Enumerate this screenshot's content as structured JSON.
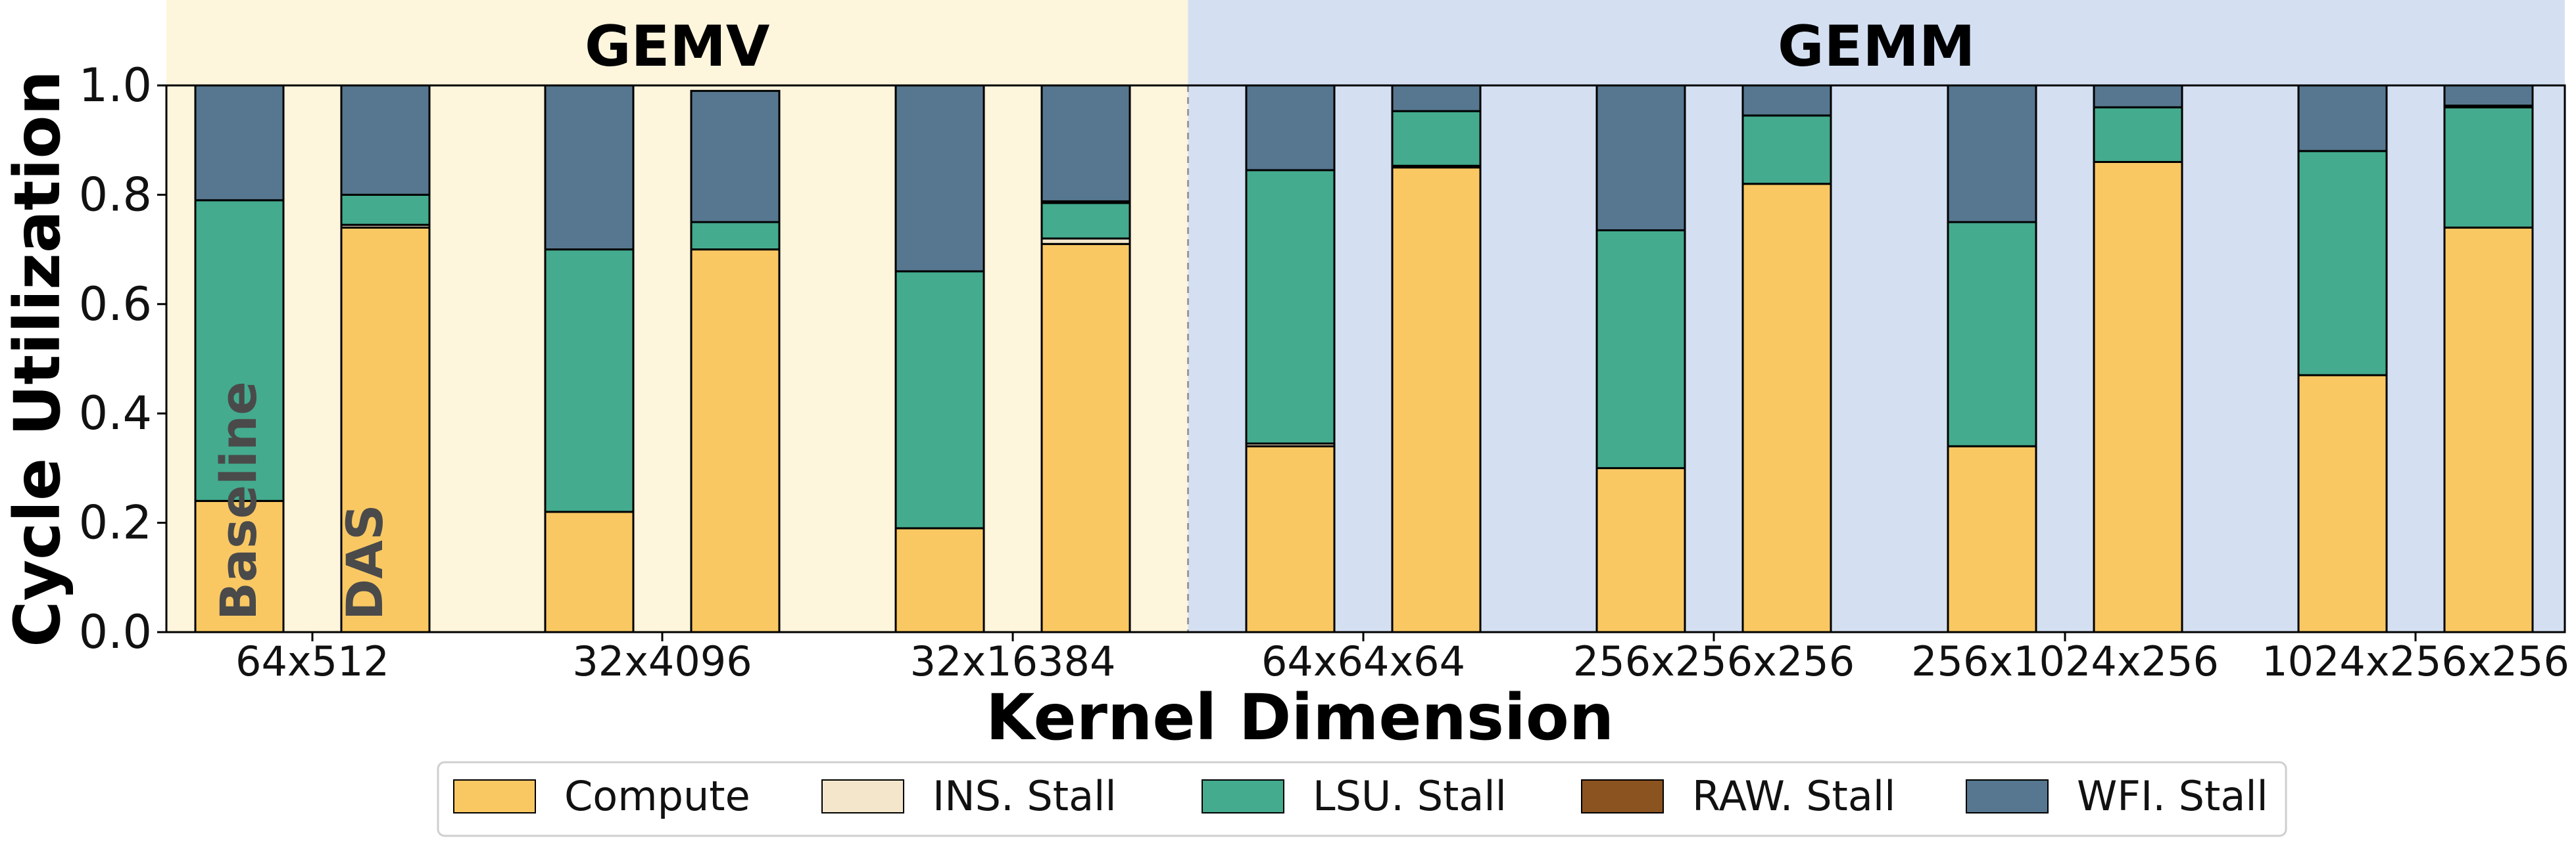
{
  "chart_data": {
    "type": "bar",
    "stacked": true,
    "ylabel": "Cycle Utilization",
    "xlabel": "Kernel Dimension",
    "ylim": [
      0,
      1.0
    ],
    "yticks": [
      "0.0",
      "0.2",
      "0.4",
      "0.6",
      "0.8",
      "1.0"
    ],
    "grid": false,
    "legend_position": "bottom-center",
    "groups": [
      {
        "name": "GEMV",
        "color": "#fdf5dc"
      },
      {
        "name": "GEMM",
        "color": "#d4e0f2"
      }
    ],
    "categories": [
      "64x512",
      "32x4096",
      "32x16384",
      "64x64x64",
      "256x256x256",
      "256x1024x256",
      "1024x256x256"
    ],
    "category_group": [
      "GEMV",
      "GEMV",
      "GEMV",
      "GEMM",
      "GEMM",
      "GEMM",
      "GEMM"
    ],
    "bar_labels": [
      "Baseline",
      "DAS"
    ],
    "series": [
      {
        "name": "Compute",
        "color": "#f9c863",
        "baseline": [
          0.24,
          0.22,
          0.19,
          0.34,
          0.3,
          0.34,
          0.47
        ],
        "das": [
          0.74,
          0.7,
          0.71,
          0.85,
          0.82,
          0.86,
          0.74
        ]
      },
      {
        "name": "INS. Stall",
        "color": "#f3e6cb",
        "baseline": [
          0.0,
          0.0,
          0.0,
          0.005,
          0.0,
          0.0,
          0.0
        ],
        "das": [
          0.005,
          0.0,
          0.01,
          0.003,
          0.0,
          0.0,
          0.0
        ]
      },
      {
        "name": "LSU. Stall",
        "color": "#44ab8e",
        "baseline": [
          0.55,
          0.48,
          0.47,
          0.5,
          0.435,
          0.41,
          0.41
        ],
        "das": [
          0.055,
          0.05,
          0.065,
          0.1,
          0.125,
          0.1,
          0.22
        ]
      },
      {
        "name": "RAW. Stall",
        "color": "#8b5320",
        "baseline": [
          0.0,
          0.0,
          0.0,
          0.0,
          0.0,
          0.0,
          0.0
        ],
        "das": [
          0.0,
          0.0,
          0.003,
          0.0,
          0.0,
          0.0,
          0.003
        ]
      },
      {
        "name": "WFI. Stall",
        "color": "#56778f",
        "baseline": [
          0.21,
          0.3,
          0.34,
          0.155,
          0.265,
          0.25,
          0.12
        ],
        "das": [
          0.2,
          0.24,
          0.212,
          0.047,
          0.055,
          0.04,
          0.037
        ]
      }
    ]
  }
}
